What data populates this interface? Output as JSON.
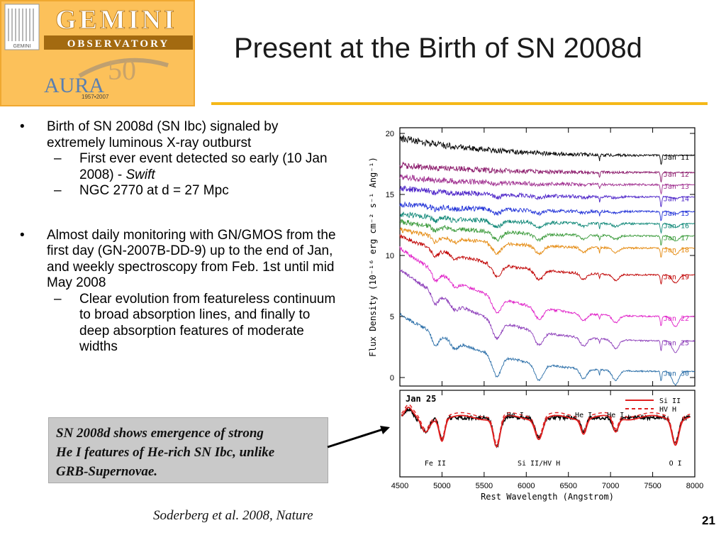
{
  "logo": {
    "observatory_name": "GEMINI",
    "observatory_sub": "OBSERVATORY",
    "small_mark": "GEMINI",
    "aura_text": "AURA",
    "anniversary": "50",
    "years": "1957•2007"
  },
  "slide": {
    "title": "Present at the Birth of SN 2008d",
    "page_number": "21",
    "citation": "Soderberg et al. 2008, Nature"
  },
  "bullets": [
    {
      "text": "Birth of SN 2008d (SN Ibc) signaled by extremely luminous X-ray outburst",
      "sub": [
        {
          "text": "First ever event detected so early (10 Jan 2008) - ",
          "italic": "Swift"
        },
        {
          "text": "NGC 2770 at d = 27 Mpc",
          "italic": ""
        }
      ]
    },
    {
      "text": "Almost daily monitoring with GN/GMOS from the first day (GN-2007B-DD-9) up to the end of Jan, and weekly spectroscopy from Feb. 1st until mid May 2008",
      "sub": [
        {
          "text": "Clear evolution from featureless continuum to broad absorption lines, and finally to deep absorption features of moderate widths",
          "italic": ""
        }
      ]
    }
  ],
  "callout": {
    "line1": "SN 2008d shows emergence of strong",
    "line2": "He I features of He-rich SN Ibc, unlike",
    "line3": "GRB-Supernovae."
  },
  "chart_data": [
    {
      "type": "line",
      "xlabel": "Rest Wavelength (Angstrom)",
      "ylabel": "Flux Density (10⁻¹⁶ erg cm⁻² s⁻¹ Ang⁻¹)",
      "xlim": [
        4500,
        8000
      ],
      "ylim": [
        0,
        20
      ],
      "x_ticks": [
        "4500",
        "5000",
        "5500",
        "6000",
        "6500",
        "7000",
        "7500",
        "8000"
      ],
      "y_ticks": [
        "0",
        "5",
        "10",
        "15",
        "20"
      ],
      "series": [
        {
          "name": "Jan 11",
          "color": "#000000",
          "offset": 18.2,
          "blue": 19.6
        },
        {
          "name": "Jan 12",
          "color": "#8b1a6b",
          "offset": 16.8,
          "blue": 17.4
        },
        {
          "name": "Jan 13",
          "color": "#a03090",
          "offset": 15.8,
          "blue": 16.4
        },
        {
          "name": "Jan 14",
          "color": "#4b22c8",
          "offset": 14.8,
          "blue": 15.5
        },
        {
          "name": "Jan 15",
          "color": "#2233d8",
          "offset": 13.6,
          "blue": 14.2
        },
        {
          "name": "Jan 16",
          "color": "#108878",
          "offset": 12.6,
          "blue": 13.4
        },
        {
          "name": "Jan 17",
          "color": "#3a9a3a",
          "offset": 11.6,
          "blue": 12.8
        },
        {
          "name": "Jan 18",
          "color": "#e58a10",
          "offset": 10.6,
          "blue": 12.1
        },
        {
          "name": "Jan 19",
          "color": "#c00000",
          "offset": 8.4,
          "blue": 11.6
        },
        {
          "name": "Jan 22",
          "color": "#e020c8",
          "offset": 5.0,
          "blue": 10.6
        },
        {
          "name": "Jan 25",
          "color": "#8a3ab8",
          "offset": 3.0,
          "blue": 8.9
        },
        {
          "name": "Jan 30",
          "color": "#2a6ea8",
          "offset": 0.5,
          "blue": 5.2
        }
      ]
    },
    {
      "type": "line",
      "panel_label": "Jan 25",
      "xlim": [
        4500,
        8000
      ],
      "legend": [
        "Si II",
        "HV H"
      ],
      "annotations": [
        {
          "text": "He I",
          "wavelength": 5870,
          "pos": "top"
        },
        {
          "text": "He I",
          "wavelength": 6680,
          "pos": "top"
        },
        {
          "text": "He I",
          "wavelength": 7060,
          "pos": "top"
        },
        {
          "text": "Fe II",
          "wavelength": 4920,
          "pos": "bottom"
        },
        {
          "text": "Si II/HV H",
          "wavelength": 6150,
          "pos": "bottom"
        },
        {
          "text": "O I",
          "wavelength": 7770,
          "pos": "bottom"
        }
      ]
    }
  ]
}
